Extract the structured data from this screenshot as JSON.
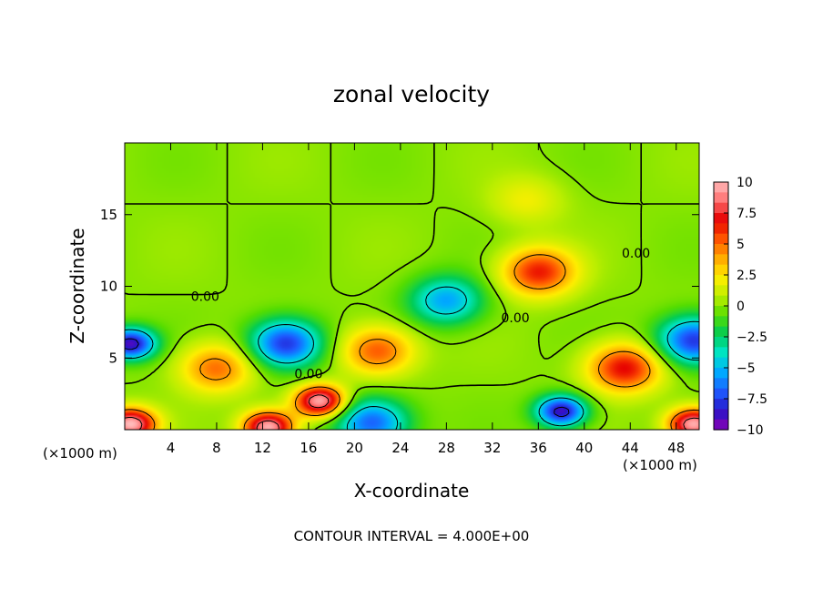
{
  "chart_data": {
    "type": "heatmap",
    "title": "zonal velocity",
    "xlabel": "X-coordinate",
    "ylabel": "Z-coordinate",
    "x_unit": "(×1000 m)",
    "z_unit": "(×1000 m)",
    "xlim": [
      0,
      50
    ],
    "ylim": [
      0,
      20
    ],
    "xticks": [
      4,
      8,
      12,
      16,
      20,
      24,
      28,
      32,
      36,
      40,
      44,
      48
    ],
    "yticks": [
      5,
      10,
      15
    ],
    "colorbar": {
      "ticks": [
        10,
        7.5,
        5,
        2.5,
        0,
        -2.5,
        -5,
        -7.5,
        -10
      ],
      "tick_labels": [
        "10",
        "7.5",
        "5",
        "2.5",
        "0",
        "−2.5",
        "−5",
        "−7.5",
        "−10"
      ],
      "range": [
        -10,
        10
      ]
    },
    "contour_labels": [
      {
        "text": "0.00",
        "x": 7.0,
        "y": 9.0
      },
      {
        "text": "0.00",
        "x": 16.0,
        "y": 3.6
      },
      {
        "text": "0.00",
        "x": 34.0,
        "y": 7.5
      },
      {
        "text": "0.00",
        "x": 44.5,
        "y": 12.0
      }
    ],
    "features": [
      {
        "x": 36,
        "z": 11,
        "u": 6.5
      },
      {
        "x": 17,
        "z": 2.0,
        "u": 10
      },
      {
        "x": 8,
        "z": 4.3,
        "u": 5
      },
      {
        "x": 22,
        "z": 5.5,
        "u": 5.5
      },
      {
        "x": 43.5,
        "z": 4.3,
        "u": 7
      },
      {
        "x": 0.5,
        "z": 0.4,
        "u": 10
      },
      {
        "x": 12.5,
        "z": 0.2,
        "u": 10
      },
      {
        "x": 49.5,
        "z": 0.4,
        "u": 10
      },
      {
        "x": 38,
        "z": 1.3,
        "u": -9
      },
      {
        "x": 14,
        "z": 6.0,
        "u": -8
      },
      {
        "x": 0.5,
        "z": 6.0,
        "u": -9
      },
      {
        "x": 49.5,
        "z": 6.2,
        "u": -8
      },
      {
        "x": 28,
        "z": 9.0,
        "u": -5.5
      },
      {
        "x": 21.5,
        "z": 0.5,
        "u": -7
      },
      {
        "x": 35,
        "z": 16,
        "u": 2
      }
    ],
    "contour_interval_note": "CONTOUR INTERVAL = 4.000E+00"
  },
  "colors": {
    "ramp": [
      "#8c00b4",
      "#2814c8",
      "#1e5aff",
      "#00aaff",
      "#00e6c8",
      "#00cc55",
      "#55dd00",
      "#bbee00",
      "#ffee00",
      "#ffaa00",
      "#ff5500",
      "#e60000",
      "#ff7070",
      "#ffbcbc"
    ]
  }
}
